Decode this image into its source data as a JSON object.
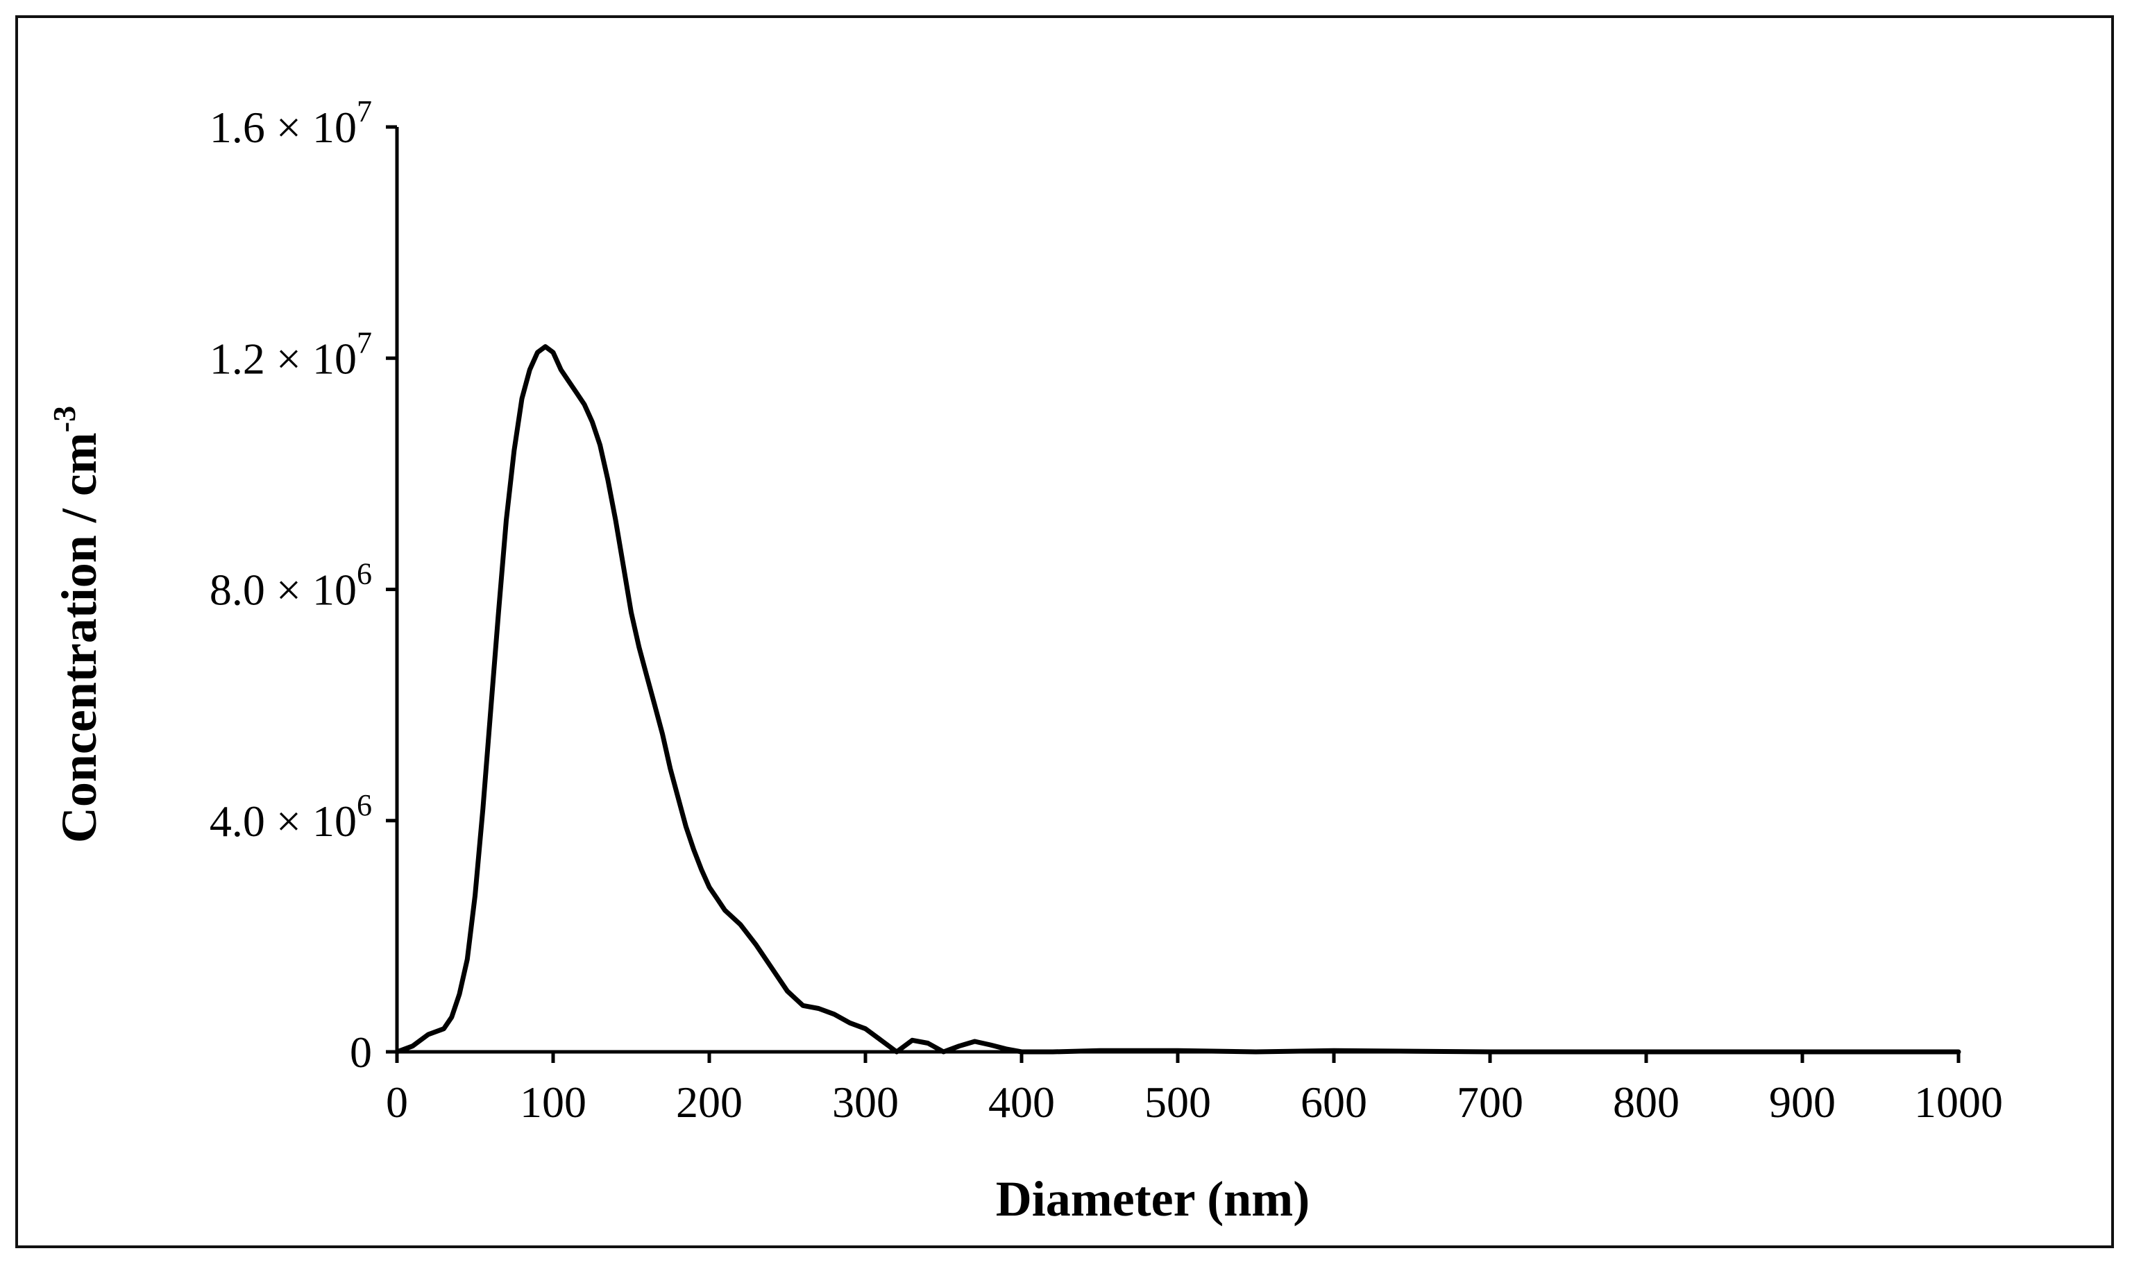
{
  "chart_data": {
    "type": "line",
    "title": "",
    "xlabel": "Diameter (nm)",
    "ylabel": "Concentration / cm",
    "ylabel_superscript": "-3",
    "xlim": [
      0,
      1000
    ],
    "ylim": [
      0,
      16000000
    ],
    "grid": false,
    "legend": "none",
    "x_ticks": [
      {
        "value": 0,
        "label": "0"
      },
      {
        "value": 100,
        "label": "100"
      },
      {
        "value": 200,
        "label": "200"
      },
      {
        "value": 300,
        "label": "300"
      },
      {
        "value": 400,
        "label": "400"
      },
      {
        "value": 500,
        "label": "500"
      },
      {
        "value": 600,
        "label": "600"
      },
      {
        "value": 700,
        "label": "700"
      },
      {
        "value": 800,
        "label": "800"
      },
      {
        "value": 900,
        "label": "900"
      },
      {
        "value": 1000,
        "label": "1000"
      }
    ],
    "y_ticks": [
      {
        "value": 0,
        "mantissa": "0",
        "exponent": ""
      },
      {
        "value": 4000000,
        "mantissa": "4.0 × 10",
        "exponent": "6"
      },
      {
        "value": 8000000,
        "mantissa": "8.0 × 10",
        "exponent": "6"
      },
      {
        "value": 12000000,
        "mantissa": "1.2 × 10",
        "exponent": "7"
      },
      {
        "value": 16000000,
        "mantissa": "1.6 × 10",
        "exponent": "7"
      }
    ],
    "series": [
      {
        "line_color": "#000000",
        "x": [
          0,
          10,
          20,
          30,
          35,
          40,
          45,
          50,
          55,
          60,
          65,
          70,
          75,
          80,
          85,
          90,
          95,
          100,
          105,
          110,
          115,
          120,
          125,
          130,
          135,
          140,
          145,
          150,
          155,
          160,
          165,
          170,
          175,
          180,
          185,
          190,
          195,
          200,
          205,
          210,
          220,
          230,
          240,
          250,
          260,
          270,
          280,
          290,
          300,
          310,
          320,
          330,
          340,
          350,
          360,
          370,
          380,
          390,
          400,
          420,
          450,
          500,
          550,
          600,
          700,
          800,
          900,
          1000
        ],
        "y": [
          0,
          100000,
          300000,
          400000,
          600000,
          1000000,
          1600000,
          2700000,
          4200000,
          5900000,
          7600000,
          9200000,
          10400000,
          11300000,
          11800000,
          12100000,
          12200000,
          12100000,
          11800000,
          11600000,
          11400000,
          11200000,
          10900000,
          10500000,
          9900000,
          9200000,
          8400000,
          7600000,
          7000000,
          6500000,
          6000000,
          5500000,
          4900000,
          4400000,
          3900000,
          3500000,
          3150000,
          2850000,
          2650000,
          2450000,
          2200000,
          1850000,
          1450000,
          1050000,
          800000,
          750000,
          650000,
          500000,
          400000,
          200000,
          0,
          200000,
          150000,
          0,
          100000,
          180000,
          120000,
          50000,
          0,
          0,
          20000,
          20000,
          0,
          20000,
          0,
          0,
          0,
          0
        ]
      }
    ]
  }
}
